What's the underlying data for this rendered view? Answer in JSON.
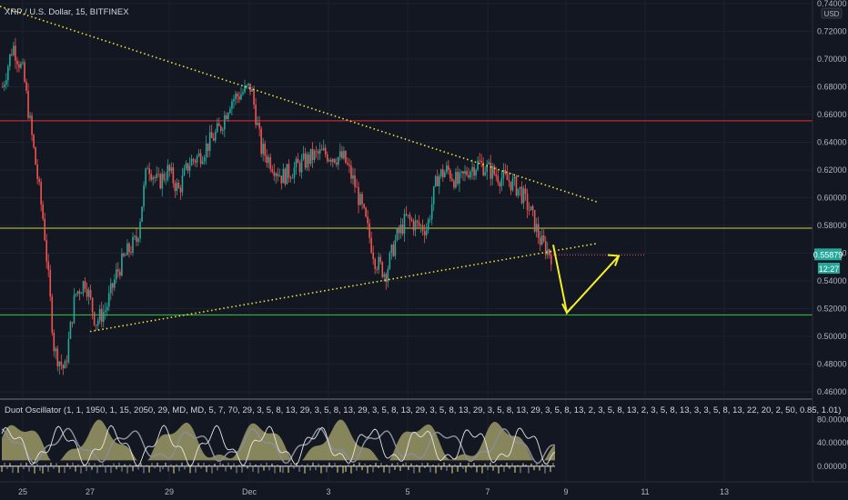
{
  "header": {
    "title": "XRP / U.S. Dollar, 15, BITFINEX",
    "currency": "USD"
  },
  "price_badge": {
    "value": "0.55879",
    "color": "#26a69a"
  },
  "countdown": "12:27",
  "oscillator": {
    "title": "Duot Oscillator (1, 1, 1950, 1, 15, 2050, 29, MD, MD, 5, 7, 70, 29, 3, 5, 8, 13, 29, 3, 5, 8, 13, 29, 3, 5, 8, 13, 29, 3, 5, 8, 13, 29, 3, 5, 8, 13, 29, 3, 5, 8, 13, 2, 3, 5, 8, 13, 2, 3, 5, 8, 13, 3, 3, 5, 8, 13, 22, 20, 2, 50, 0.85, 1.01)",
    "ticks": [
      "80.00000",
      "40.00000",
      "0.00000"
    ]
  },
  "colors": {
    "background": "#131722",
    "up": "#26a69a",
    "down": "#ef5350",
    "resistance": "#e0303a",
    "support_upper": "#c8d43c",
    "support_lower": "#2ecc40",
    "trend": "#f0e040",
    "arrow": "#f5ef2a"
  },
  "chart_data": {
    "type": "candlestick",
    "symbol": "XRP / U.S. Dollar",
    "interval": "15",
    "exchange": "BITFINEX",
    "y_ticks": [
      "0.74000",
      "0.72000",
      "0.70000",
      "0.68000",
      "0.66000",
      "0.64000",
      "0.62000",
      "0.60000",
      "0.58000",
      "0.56000",
      "0.54000",
      "0.52000",
      "0.50000",
      "0.48000",
      "0.46000"
    ],
    "x_ticks": [
      "25",
      "27",
      "29",
      "Dec",
      "3",
      "5",
      "7",
      "9",
      "11",
      "13"
    ],
    "ylim": [
      0.458,
      0.74
    ],
    "last_price": 0.55879,
    "horizontal_levels": [
      {
        "price": 0.6555,
        "color": "red"
      },
      {
        "price": 0.578,
        "color": "yellow-green"
      },
      {
        "price": 0.5155,
        "color": "green"
      }
    ],
    "trendlines": [
      {
        "from": [
          "25",
          0.738
        ],
        "to": [
          "10",
          0.597
        ],
        "style": "dotted"
      },
      {
        "from": [
          "27",
          0.5035
        ],
        "to": [
          "10",
          0.567
        ],
        "style": "dotted"
      }
    ],
    "projection_arrow": [
      0.566,
      0.517,
      0.558
    ],
    "price_path": [
      0.68,
      0.71,
      0.69,
      0.635,
      0.58,
      0.49,
      0.475,
      0.53,
      0.54,
      0.51,
      0.52,
      0.545,
      0.56,
      0.57,
      0.625,
      0.61,
      0.62,
      0.605,
      0.625,
      0.63,
      0.64,
      0.65,
      0.67,
      0.675,
      0.68,
      0.635,
      0.625,
      0.615,
      0.62,
      0.625,
      0.63,
      0.632,
      0.63,
      0.628,
      0.61,
      0.585,
      0.555,
      0.545,
      0.57,
      0.585,
      0.58,
      0.578,
      0.615,
      0.62,
      0.61,
      0.62,
      0.625,
      0.62,
      0.615,
      0.612,
      0.605,
      0.59,
      0.568,
      0.5588
    ]
  }
}
